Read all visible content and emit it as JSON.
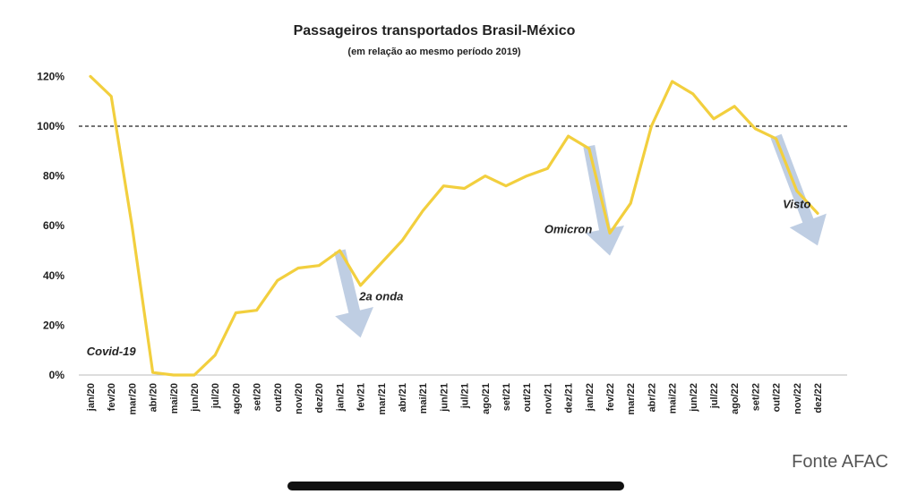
{
  "chart_data": {
    "type": "line",
    "title": "Passageiros transportados Brasil-México",
    "subtitle": "(em relação ao mesmo período 2019)",
    "source": "Fonte AFAC",
    "x": [
      "jan/20",
      "fev/20",
      "mar/20",
      "abr/20",
      "mai/20",
      "jun/20",
      "jul/20",
      "ago/20",
      "set/20",
      "out/20",
      "nov/20",
      "dez/20",
      "jan/21",
      "fev/21",
      "mar/21",
      "abr/21",
      "mai/21",
      "jun/21",
      "jul/21",
      "ago/21",
      "set/21",
      "out/21",
      "nov/21",
      "dez/21",
      "jan/22",
      "fev/22",
      "mar/22",
      "abr/22",
      "mai/22",
      "jun/22",
      "jul/22",
      "ago/22",
      "set/22",
      "out/22",
      "nov/22",
      "dez/22"
    ],
    "series": [
      {
        "values": [
          120,
          112,
          60,
          1,
          0,
          0,
          8,
          25,
          26,
          38,
          43,
          44,
          50,
          36,
          45,
          54,
          66,
          76,
          75,
          80,
          76,
          80,
          83,
          96,
          91,
          57,
          69,
          100,
          118,
          113,
          103,
          108,
          99,
          95,
          74,
          65
        ],
        "color": "#f2cf3e"
      }
    ],
    "ylim": [
      0,
      120
    ],
    "yticks": [
      0,
      20,
      40,
      60,
      80,
      100,
      120
    ],
    "ytick_labels": [
      "0%",
      "20%",
      "40%",
      "60%",
      "80%",
      "100%",
      "120%"
    ],
    "reference_line": {
      "y": 100,
      "style": "dashed",
      "color": "#222222"
    },
    "annotations": [
      {
        "text": "Covid-19",
        "x": "fev/20",
        "y": 8
      },
      {
        "text": "2a onda",
        "x": "mar/21",
        "y": 30
      },
      {
        "text": "Omicron",
        "x": "dez/21",
        "y": 57
      },
      {
        "text": "Visto",
        "x": "nov/22",
        "y": 67
      }
    ],
    "arrows": [
      {
        "from": {
          "x": "jan/21",
          "y": 50
        },
        "to": {
          "x": "fev/21",
          "y": 15
        }
      },
      {
        "from": {
          "x": "jan/22",
          "y": 92
        },
        "to": {
          "x": "fev/22",
          "y": 48
        }
      },
      {
        "from": {
          "x": "out/22",
          "y": 96
        },
        "to": {
          "x": "dez/22",
          "y": 52
        }
      }
    ],
    "arrow_color": "#b8c9e0",
    "grid": false,
    "legend": "none"
  }
}
